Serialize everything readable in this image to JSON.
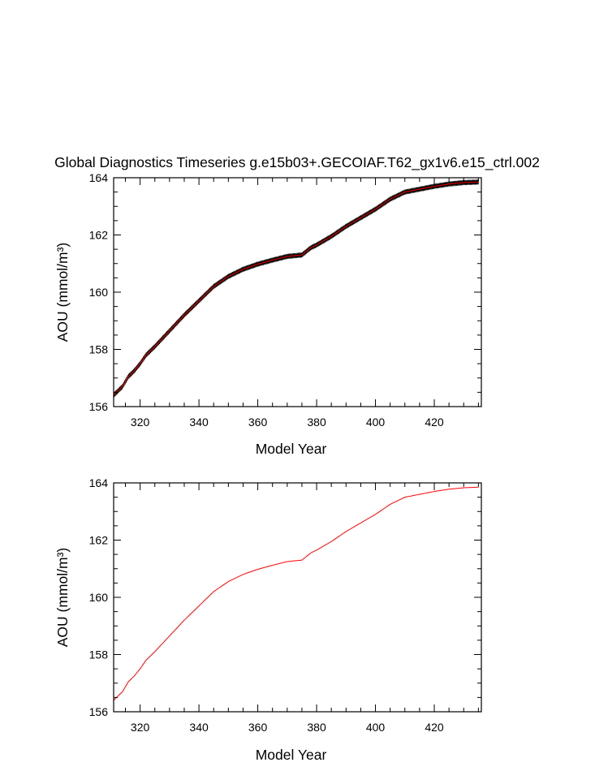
{
  "title": "Global Diagnostics Timeseries g.e15b03+.GECOIAF.T62_gx1v6.e15_ctrl.002",
  "colors": {
    "monthly": "#000000",
    "annual": "#ff0000",
    "axis": "#000000"
  },
  "chart_data": [
    {
      "type": "line",
      "xlabel": "Model Year",
      "ylabel": "AOU (mmol/m³)",
      "xlim": [
        311,
        436
      ],
      "ylim": [
        156,
        164
      ],
      "xticks": [
        320,
        340,
        360,
        380,
        400,
        420
      ],
      "yticks": [
        156,
        158,
        160,
        162,
        164
      ],
      "series": [
        {
          "color": "#000000",
          "monthly_oscillation": 0.08
        },
        {
          "color": "#ff0000"
        }
      ],
      "x": [
        311,
        314,
        316,
        318,
        320,
        322,
        325,
        330,
        335,
        340,
        345,
        350,
        355,
        360,
        365,
        370,
        375,
        378,
        380,
        385,
        390,
        395,
        400,
        405,
        410,
        415,
        420,
        425,
        430,
        435
      ],
      "y": [
        156.4,
        156.7,
        157.05,
        157.25,
        157.5,
        157.8,
        158.1,
        158.65,
        159.2,
        159.7,
        160.2,
        160.55,
        160.8,
        160.98,
        161.12,
        161.25,
        161.3,
        161.55,
        161.65,
        161.95,
        162.3,
        162.6,
        162.9,
        163.25,
        163.5,
        163.6,
        163.7,
        163.78,
        163.83,
        163.85
      ]
    },
    {
      "type": "line",
      "xlabel": "Model Year",
      "ylabel": "AOU (mmol/m³)",
      "xlim": [
        311,
        436
      ],
      "ylim": [
        156,
        164
      ],
      "xticks": [
        320,
        340,
        360,
        380,
        400,
        420
      ],
      "yticks": [
        156,
        158,
        160,
        162,
        164
      ],
      "series": [
        {
          "color": "#ff0000"
        }
      ],
      "x": [
        311,
        314,
        316,
        318,
        320,
        322,
        325,
        330,
        335,
        340,
        345,
        350,
        355,
        360,
        365,
        370,
        375,
        378,
        380,
        385,
        390,
        395,
        400,
        405,
        410,
        415,
        420,
        425,
        430,
        435
      ],
      "y": [
        156.4,
        156.7,
        157.05,
        157.25,
        157.5,
        157.8,
        158.1,
        158.65,
        159.2,
        159.7,
        160.2,
        160.55,
        160.8,
        160.98,
        161.12,
        161.25,
        161.3,
        161.55,
        161.65,
        161.95,
        162.3,
        162.6,
        162.9,
        163.25,
        163.5,
        163.6,
        163.7,
        163.78,
        163.83,
        163.85
      ]
    }
  ]
}
